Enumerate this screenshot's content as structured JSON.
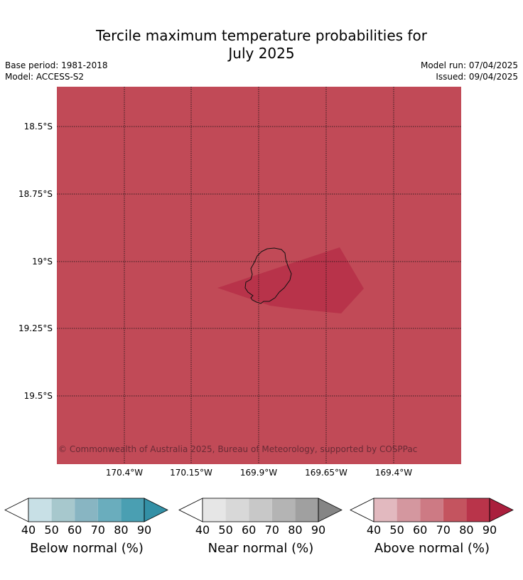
{
  "title_line1": "Tercile maximum temperature probabilities for",
  "title_line2": "July 2025",
  "meta": {
    "base_period": "Base period: 1981-2018",
    "model": "Model: ACCESS-S2",
    "model_run": "Model run: 07/04/2025",
    "issued": "Issued: 09/04/2025"
  },
  "map": {
    "background_color": "#c14a57",
    "patch_color": "#b8334a",
    "copyright": "© Commonwealth of Australia 2025, Bureau of Meteorology, supported by COSPPac",
    "lat_labels": [
      "18.5°S",
      "18.75°S",
      "19°S",
      "19.25°S",
      "19.5°S"
    ],
    "lon_labels": [
      "170.4°W",
      "170.15°W",
      "169.9°W",
      "169.65°W",
      "169.4°W"
    ]
  },
  "legends": [
    {
      "title": "Below normal (%)",
      "ticks": [
        "40",
        "50",
        "60",
        "70",
        "80",
        "90"
      ],
      "colors": [
        "#ffffff",
        "#c8e0e6",
        "#a7c8cd",
        "#88b5c2",
        "#6aadbd",
        "#4a9fb2",
        "#3390a6"
      ]
    },
    {
      "title": "Near normal (%)",
      "ticks": [
        "40",
        "50",
        "60",
        "70",
        "80",
        "90"
      ],
      "colors": [
        "#ffffff",
        "#e6e6e6",
        "#d8d8d8",
        "#c8c8c8",
        "#b4b4b4",
        "#a0a0a0",
        "#858585"
      ]
    },
    {
      "title": "Above normal (%)",
      "ticks": [
        "40",
        "50",
        "60",
        "70",
        "80",
        "90"
      ],
      "colors": [
        "#ffffff",
        "#e2b9bf",
        "#d4979f",
        "#cd7a84",
        "#c4545f",
        "#b9344a",
        "#aa1f3d"
      ]
    }
  ]
}
